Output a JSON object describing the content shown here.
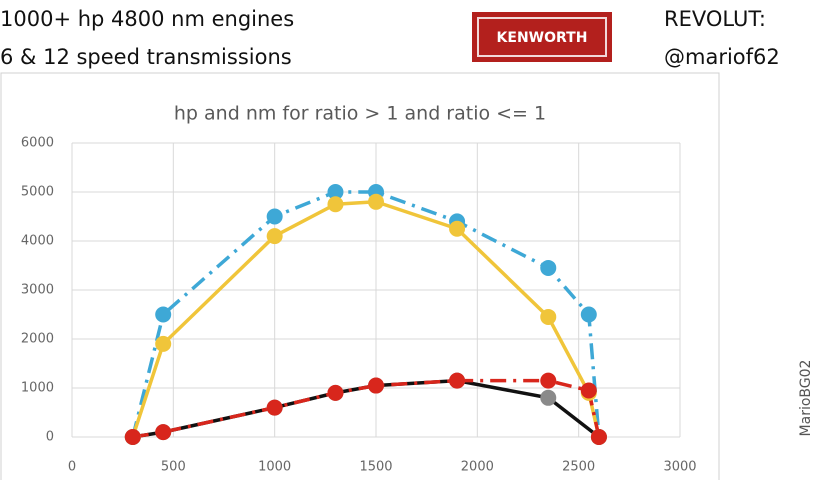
{
  "header": {
    "line1": "1000+ hp 4800 nm engines",
    "line2": "6 & 12 speed transmissions",
    "logo": "KENWORTH",
    "revolut": "REVOLUT:",
    "handle": "@mariof62",
    "watermark": "MarioBG02"
  },
  "chart_data": {
    "type": "line",
    "title": "hp and nm for ratio > 1 and ratio <= 1",
    "xlim": [
      0,
      3000
    ],
    "xticks": [
      0,
      500,
      1000,
      1500,
      2000,
      2500,
      3000
    ],
    "ylim": [
      0,
      6000
    ],
    "yticks": [
      0,
      1000,
      2000,
      3000,
      4000,
      5000,
      6000
    ],
    "grid": true,
    "series": [
      {
        "color": "#3ea8d6",
        "marker_color": "#3ea8d6",
        "dash": true,
        "x": [
          300,
          450,
          1000,
          1300,
          1500,
          1900,
          2350,
          2550,
          2600
        ],
        "values": [
          0,
          2500,
          4500,
          5000,
          5000,
          4400,
          3450,
          2500,
          0
        ]
      },
      {
        "color": "#f0c53a",
        "marker_color": "#f0c53a",
        "dash": false,
        "x": [
          300,
          450,
          1000,
          1300,
          1500,
          1900,
          2350,
          2550,
          2600
        ],
        "values": [
          0,
          1900,
          4100,
          4750,
          4800,
          4250,
          2450,
          900,
          0
        ]
      },
      {
        "color": "#111111",
        "marker_color": "#8a8a8a",
        "dash": false,
        "x": [
          300,
          450,
          1000,
          1300,
          1500,
          1900,
          2350,
          2600
        ],
        "values": [
          0,
          100,
          600,
          900,
          1050,
          1150,
          800,
          0
        ]
      },
      {
        "color": "#d8261c",
        "marker_color": "#d8261c",
        "dash": true,
        "x": [
          300,
          450,
          1000,
          1300,
          1500,
          1900,
          2350,
          2550,
          2600
        ],
        "values": [
          0,
          100,
          600,
          900,
          1050,
          1150,
          1150,
          950,
          0
        ]
      }
    ]
  }
}
